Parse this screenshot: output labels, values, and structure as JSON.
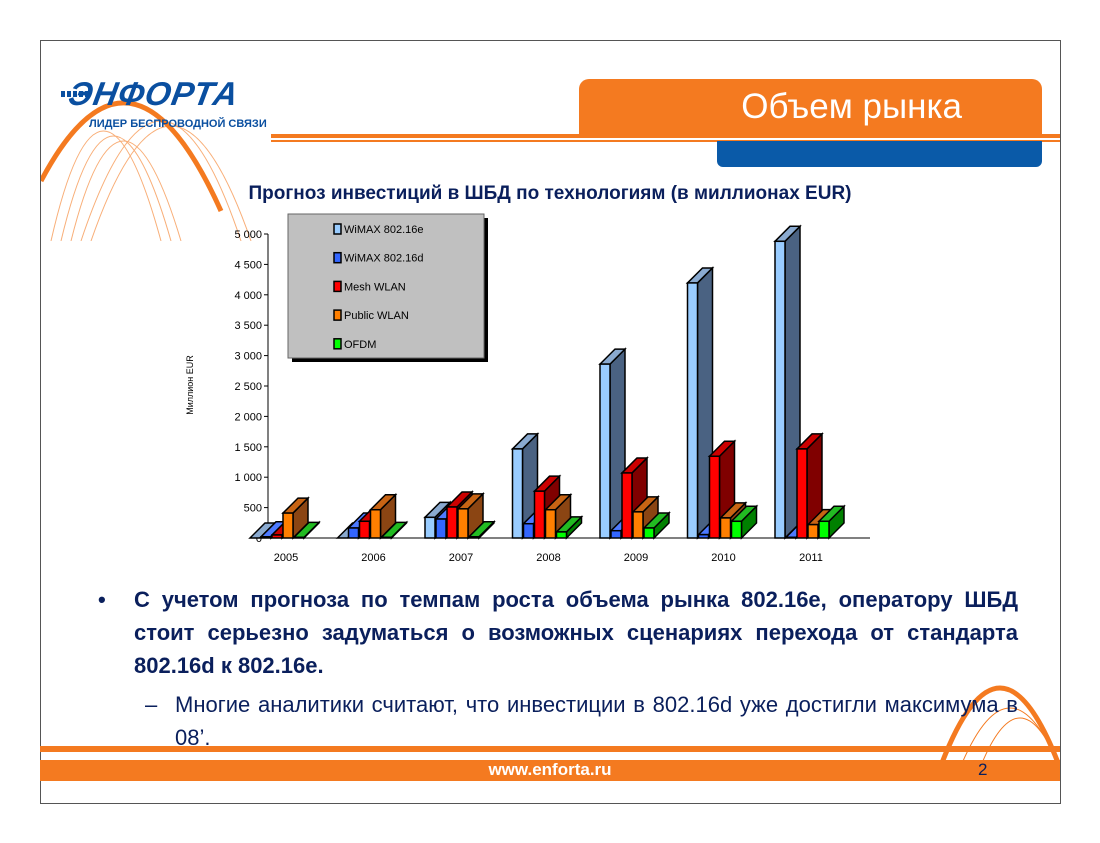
{
  "header": {
    "logo_text": "ЭНФОРТА",
    "logo_tagline": "ЛИДЕР БЕСПРОВОДНОЙ СВЯЗИ",
    "slide_title": "Объем рынка"
  },
  "chart_data": {
    "type": "bar",
    "title": "Прогноз инвестиций в ШБД по технологиям (в миллионах EUR)",
    "xlabel": "",
    "ylabel": "Миллион EUR",
    "ylim": [
      0,
      5000
    ],
    "yticks": [
      "0",
      "500",
      "1 000",
      "1 500",
      "2 000",
      "2 500",
      "3 000",
      "3 500",
      "4 000",
      "4 500",
      "5 000"
    ],
    "categories": [
      "2005",
      "2006",
      "2007",
      "2008",
      "2009",
      "2010",
      "2011"
    ],
    "legend_position": "top-left",
    "series": [
      {
        "name": "WiMAX 802.16e",
        "color": "#99ccff",
        "side": "#4a6282",
        "top": "#8aaad0",
        "values": [
          0,
          0,
          340,
          1465,
          2860,
          4195,
          4880
        ]
      },
      {
        "name": "WiMAX 802.16d",
        "color": "#3366ff",
        "side": "#1f3d99",
        "top": "#4d7aff",
        "values": [
          20,
          165,
          312,
          235,
          120,
          55,
          10
        ]
      },
      {
        "name": "Mesh WLAN",
        "color": "#ff0000",
        "side": "#800000",
        "top": "#cc0000",
        "values": [
          50,
          275,
          510,
          770,
          1070,
          1345,
          1465
        ]
      },
      {
        "name": "Public  WLAN",
        "color": "#ff7f00",
        "side": "#8b4513",
        "top": "#c86414",
        "values": [
          410,
          465,
          480,
          465,
          430,
          330,
          220
        ]
      },
      {
        "name": "OFDM",
        "color": "#00ff00",
        "side": "#008000",
        "top": "#22bb22",
        "values": [
          10,
          10,
          20,
          100,
          165,
          275,
          275
        ]
      }
    ]
  },
  "body": {
    "bullet_symbol": "•",
    "bullet_text": "С учетом прогноза по темпам роста объема рынка 802.16e, оператору ШБД стоит серьезно задуматься о возможных сценариях перехода от стандарта 802.16d к 802.16e.",
    "sub_symbol": "–",
    "sub_text": "Многие аналитики считают, что инвестиции в 802.16d уже достигли максимума в 08’."
  },
  "footer": {
    "url": "www.enforta.ru",
    "page_number": "2"
  }
}
